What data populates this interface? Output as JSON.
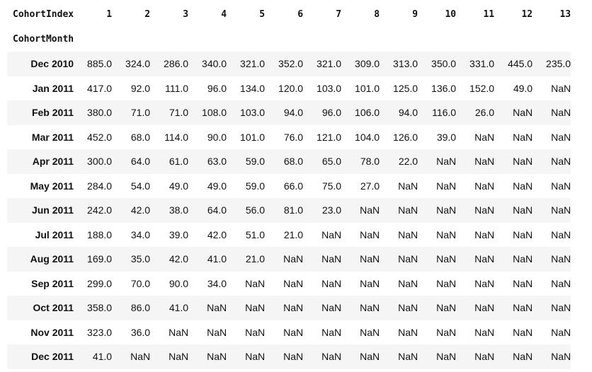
{
  "table": {
    "corner_label": "CohortIndex",
    "index_name": "CohortMonth",
    "columns": [
      "1",
      "2",
      "3",
      "4",
      "5",
      "6",
      "7",
      "8",
      "9",
      "10",
      "11",
      "12",
      "13"
    ],
    "rows": [
      {
        "label": "Dec 2010",
        "values": [
          "885.0",
          "324.0",
          "286.0",
          "340.0",
          "321.0",
          "352.0",
          "321.0",
          "309.0",
          "313.0",
          "350.0",
          "331.0",
          "445.0",
          "235.0"
        ]
      },
      {
        "label": "Jan 2011",
        "values": [
          "417.0",
          "92.0",
          "111.0",
          "96.0",
          "134.0",
          "120.0",
          "103.0",
          "101.0",
          "125.0",
          "136.0",
          "152.0",
          "49.0",
          "NaN"
        ]
      },
      {
        "label": "Feb 2011",
        "values": [
          "380.0",
          "71.0",
          "71.0",
          "108.0",
          "103.0",
          "94.0",
          "96.0",
          "106.0",
          "94.0",
          "116.0",
          "26.0",
          "NaN",
          "NaN"
        ]
      },
      {
        "label": "Mar 2011",
        "values": [
          "452.0",
          "68.0",
          "114.0",
          "90.0",
          "101.0",
          "76.0",
          "121.0",
          "104.0",
          "126.0",
          "39.0",
          "NaN",
          "NaN",
          "NaN"
        ]
      },
      {
        "label": "Apr 2011",
        "values": [
          "300.0",
          "64.0",
          "61.0",
          "63.0",
          "59.0",
          "68.0",
          "65.0",
          "78.0",
          "22.0",
          "NaN",
          "NaN",
          "NaN",
          "NaN"
        ]
      },
      {
        "label": "May 2011",
        "values": [
          "284.0",
          "54.0",
          "49.0",
          "49.0",
          "59.0",
          "66.0",
          "75.0",
          "27.0",
          "NaN",
          "NaN",
          "NaN",
          "NaN",
          "NaN"
        ]
      },
      {
        "label": "Jun 2011",
        "values": [
          "242.0",
          "42.0",
          "38.0",
          "64.0",
          "56.0",
          "81.0",
          "23.0",
          "NaN",
          "NaN",
          "NaN",
          "NaN",
          "NaN",
          "NaN"
        ]
      },
      {
        "label": "Jul 2011",
        "values": [
          "188.0",
          "34.0",
          "39.0",
          "42.0",
          "51.0",
          "21.0",
          "NaN",
          "NaN",
          "NaN",
          "NaN",
          "NaN",
          "NaN",
          "NaN"
        ]
      },
      {
        "label": "Aug 2011",
        "values": [
          "169.0",
          "35.0",
          "42.0",
          "41.0",
          "21.0",
          "NaN",
          "NaN",
          "NaN",
          "NaN",
          "NaN",
          "NaN",
          "NaN",
          "NaN"
        ]
      },
      {
        "label": "Sep 2011",
        "values": [
          "299.0",
          "70.0",
          "90.0",
          "34.0",
          "NaN",
          "NaN",
          "NaN",
          "NaN",
          "NaN",
          "NaN",
          "NaN",
          "NaN",
          "NaN"
        ]
      },
      {
        "label": "Oct 2011",
        "values": [
          "358.0",
          "86.0",
          "41.0",
          "NaN",
          "NaN",
          "NaN",
          "NaN",
          "NaN",
          "NaN",
          "NaN",
          "NaN",
          "NaN",
          "NaN"
        ]
      },
      {
        "label": "Nov 2011",
        "values": [
          "323.0",
          "36.0",
          "NaN",
          "NaN",
          "NaN",
          "NaN",
          "NaN",
          "NaN",
          "NaN",
          "NaN",
          "NaN",
          "NaN",
          "NaN"
        ]
      },
      {
        "label": "Dec 2011",
        "values": [
          "41.0",
          "NaN",
          "NaN",
          "NaN",
          "NaN",
          "NaN",
          "NaN",
          "NaN",
          "NaN",
          "NaN",
          "NaN",
          "NaN",
          "NaN"
        ]
      }
    ]
  },
  "colors": {
    "stripe": "#f5f5f5",
    "text": "#111111"
  }
}
